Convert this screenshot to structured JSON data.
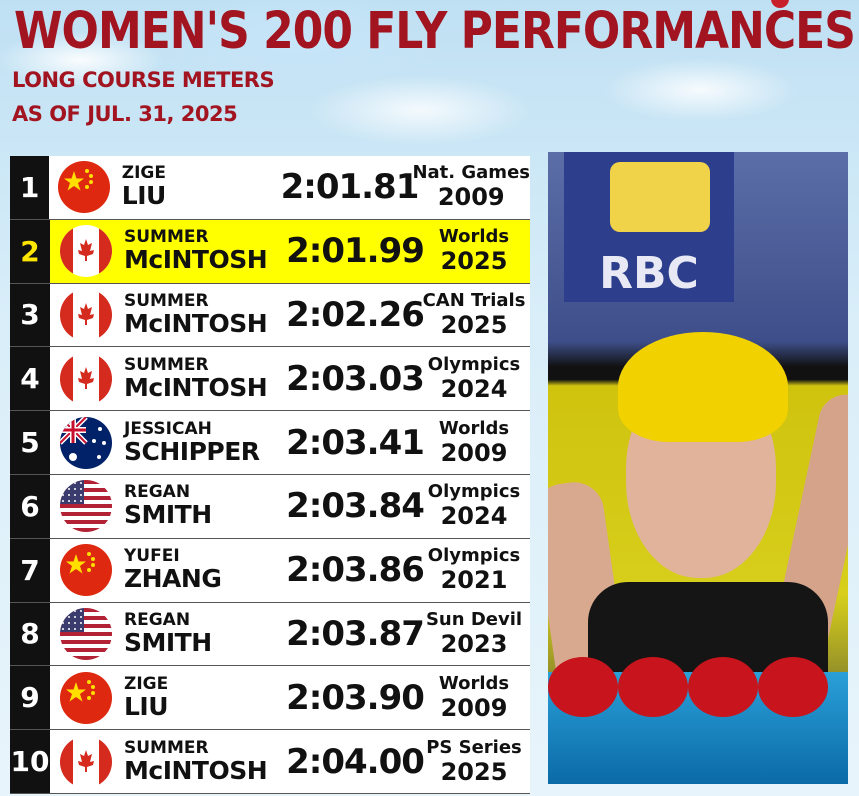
{
  "header": {
    "title": "WOMEN'S 200 FLY PERFORMANCES",
    "subtitle1": "LONG COURSE METERS",
    "subtitle2": "AS OF JUL. 31, 2025"
  },
  "colors": {
    "accent": "#a11420",
    "highlight": "#ffff00",
    "rank_bg": "#111111"
  },
  "rows": [
    {
      "rank": "1",
      "flag": "china-flag-icon",
      "first": "ZIGE",
      "last": "LIU",
      "time": "2:01.81",
      "meet": "Nat. Games",
      "year": "2009"
    },
    {
      "rank": "2",
      "flag": "canada-flag-icon",
      "first": "SUMMER",
      "last": "McINTOSH",
      "time": "2:01.99",
      "meet": "Worlds",
      "year": "2025",
      "highlight": true
    },
    {
      "rank": "3",
      "flag": "canada-flag-icon",
      "first": "SUMMER",
      "last": "McINTOSH",
      "time": "2:02.26",
      "meet": "CAN Trials",
      "year": "2025"
    },
    {
      "rank": "4",
      "flag": "canada-flag-icon",
      "first": "SUMMER",
      "last": "McINTOSH",
      "time": "2:03.03",
      "meet": "Olympics",
      "year": "2024"
    },
    {
      "rank": "5",
      "flag": "australia-flag-icon",
      "first": "JESSICAH",
      "last": "SCHIPPER",
      "time": "2:03.41",
      "meet": "Worlds",
      "year": "2009"
    },
    {
      "rank": "6",
      "flag": "usa-flag-icon",
      "first": "REGAN",
      "last": "SMITH",
      "time": "2:03.84",
      "meet": "Olympics",
      "year": "2024"
    },
    {
      "rank": "7",
      "flag": "china-flag-icon",
      "first": "YUFEI",
      "last": "ZHANG",
      "time": "2:03.86",
      "meet": "Olympics",
      "year": "2021"
    },
    {
      "rank": "8",
      "flag": "usa-flag-icon",
      "first": "REGAN",
      "last": "SMITH",
      "time": "2:03.87",
      "meet": "Sun Devil",
      "year": "2023"
    },
    {
      "rank": "9",
      "flag": "china-flag-icon",
      "first": "ZIGE",
      "last": "LIU",
      "time": "2:03.90",
      "meet": "Worlds",
      "year": "2009"
    },
    {
      "rank": "10",
      "flag": "canada-flag-icon",
      "first": "SUMMER",
      "last": "McINTOSH",
      "time": "2:04.00",
      "meet": "PS Series",
      "year": "2025"
    }
  ],
  "photo": {
    "banner_text": "RBC"
  }
}
